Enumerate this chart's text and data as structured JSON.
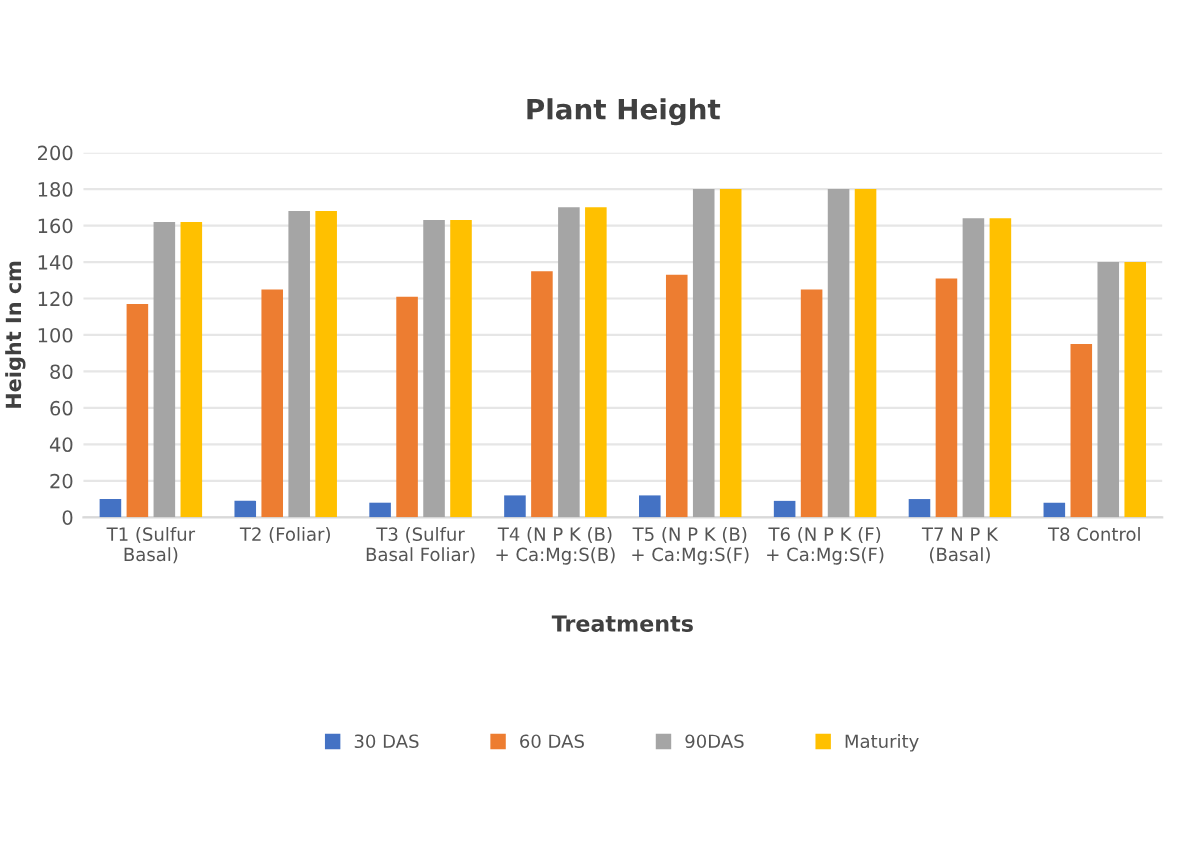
{
  "chart_data": {
    "type": "bar",
    "title": "Plant Height",
    "xlabel": "Treatments",
    "ylabel": "Height In cm",
    "categories": [
      "T1 (Sulfur\nBasal)",
      "T2 (Foliar)",
      "T3 (Sulfur\nBasal Foliar)",
      "T4 (N P K (B)\n+ Ca:Mg:S(B)",
      "T5 (N P K (B)\n+ Ca:Mg:S(F)",
      "T6 (N P K (F)\n+ Ca:Mg:S(F)",
      "T7 N P K\n(Basal)",
      "T8 Control"
    ],
    "series": [
      {
        "name": "30 DAS",
        "color": "#4472c4",
        "values": [
          10,
          9,
          8,
          12,
          12,
          9,
          10,
          8
        ]
      },
      {
        "name": "60 DAS",
        "color": "#ed7d31",
        "values": [
          117,
          125,
          121,
          135,
          133,
          125,
          131,
          95
        ]
      },
      {
        "name": "90DAS",
        "color": "#a5a5a5",
        "values": [
          162,
          168,
          163,
          170,
          180,
          180,
          164,
          140
        ]
      },
      {
        "name": "Maturity",
        "color": "#ffc000",
        "values": [
          162,
          168,
          163,
          170,
          180,
          180,
          164,
          140
        ]
      }
    ],
    "ylim": [
      0,
      200
    ],
    "yticks": [
      0,
      20,
      40,
      60,
      80,
      100,
      120,
      140,
      160,
      180,
      200
    ],
    "grid": "y",
    "legend": "bottom"
  }
}
